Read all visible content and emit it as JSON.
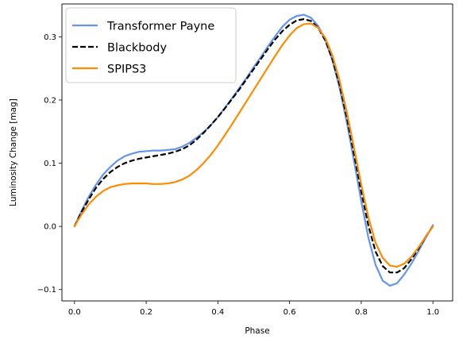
{
  "chart_data": {
    "type": "line",
    "title": "",
    "xlabel": "Phase",
    "ylabel": "Luminosity Change [mag]",
    "xlim": [
      -0.035,
      1.055
    ],
    "ylim": [
      -0.118,
      0.352
    ],
    "xticks": [
      0.0,
      0.2,
      0.4,
      0.6,
      0.8,
      1.0
    ],
    "xtick_labels": [
      "0.0",
      "0.2",
      "0.4",
      "0.6",
      "0.8",
      "1.0"
    ],
    "yticks": [
      -0.1,
      0.0,
      0.1,
      0.2,
      0.3
    ],
    "ytick_labels": [
      "−0.1",
      "0.0",
      "0.1",
      "0.2",
      "0.3"
    ],
    "grid": false,
    "legend_position": "top-left",
    "series": [
      {
        "name": "Transformer Payne",
        "color": "#6495ED",
        "dash": "solid",
        "x": [
          0.0,
          0.02,
          0.04,
          0.06,
          0.08,
          0.1,
          0.12,
          0.14,
          0.16,
          0.18,
          0.2,
          0.22,
          0.24,
          0.26,
          0.28,
          0.3,
          0.32,
          0.34,
          0.36,
          0.38,
          0.4,
          0.42,
          0.44,
          0.46,
          0.48,
          0.5,
          0.52,
          0.54,
          0.56,
          0.58,
          0.6,
          0.62,
          0.64,
          0.66,
          0.68,
          0.7,
          0.72,
          0.74,
          0.76,
          0.78,
          0.8,
          0.82,
          0.84,
          0.86,
          0.88,
          0.9,
          0.92,
          0.94,
          0.96,
          0.98,
          1.0
        ],
        "y": [
          0.0,
          0.025,
          0.047,
          0.066,
          0.082,
          0.094,
          0.104,
          0.111,
          0.115,
          0.118,
          0.119,
          0.12,
          0.12,
          0.121,
          0.122,
          0.126,
          0.132,
          0.14,
          0.149,
          0.16,
          0.173,
          0.188,
          0.203,
          0.219,
          0.235,
          0.252,
          0.268,
          0.285,
          0.301,
          0.316,
          0.327,
          0.333,
          0.335,
          0.33,
          0.317,
          0.295,
          0.262,
          0.218,
          0.164,
          0.103,
          0.04,
          -0.018,
          -0.061,
          -0.086,
          -0.094,
          -0.09,
          -0.076,
          -0.059,
          -0.039,
          -0.018,
          0.002
        ]
      },
      {
        "name": "Blackbody",
        "color": "#000000",
        "dash": "dashed",
        "x": [
          0.0,
          0.02,
          0.04,
          0.06,
          0.08,
          0.1,
          0.12,
          0.14,
          0.16,
          0.18,
          0.2,
          0.22,
          0.24,
          0.26,
          0.28,
          0.3,
          0.32,
          0.34,
          0.36,
          0.38,
          0.4,
          0.42,
          0.44,
          0.46,
          0.48,
          0.5,
          0.52,
          0.54,
          0.56,
          0.58,
          0.6,
          0.62,
          0.64,
          0.66,
          0.68,
          0.7,
          0.72,
          0.74,
          0.76,
          0.78,
          0.8,
          0.82,
          0.84,
          0.86,
          0.88,
          0.9,
          0.92,
          0.94,
          0.96,
          0.98,
          1.0
        ],
        "y": [
          0.0,
          0.023,
          0.043,
          0.061,
          0.075,
          0.086,
          0.094,
          0.1,
          0.104,
          0.107,
          0.109,
          0.111,
          0.113,
          0.115,
          0.118,
          0.122,
          0.128,
          0.137,
          0.148,
          0.16,
          0.173,
          0.187,
          0.202,
          0.217,
          0.233,
          0.249,
          0.265,
          0.281,
          0.296,
          0.309,
          0.319,
          0.326,
          0.328,
          0.325,
          0.314,
          0.294,
          0.264,
          0.223,
          0.172,
          0.114,
          0.055,
          0.001,
          -0.04,
          -0.063,
          -0.073,
          -0.073,
          -0.066,
          -0.052,
          -0.035,
          -0.016,
          0.0
        ]
      },
      {
        "name": "SPIPS3",
        "color": "#FF8C00",
        "dash": "solid",
        "x": [
          0.0,
          0.02,
          0.04,
          0.06,
          0.08,
          0.1,
          0.12,
          0.14,
          0.16,
          0.18,
          0.2,
          0.22,
          0.24,
          0.26,
          0.28,
          0.3,
          0.32,
          0.34,
          0.36,
          0.38,
          0.4,
          0.42,
          0.44,
          0.46,
          0.48,
          0.5,
          0.52,
          0.54,
          0.56,
          0.58,
          0.6,
          0.62,
          0.64,
          0.66,
          0.68,
          0.7,
          0.72,
          0.74,
          0.76,
          0.78,
          0.8,
          0.82,
          0.84,
          0.86,
          0.88,
          0.9,
          0.92,
          0.94,
          0.96,
          0.98,
          1.0
        ],
        "y": [
          0.0,
          0.019,
          0.035,
          0.047,
          0.056,
          0.062,
          0.065,
          0.067,
          0.068,
          0.068,
          0.068,
          0.067,
          0.067,
          0.068,
          0.07,
          0.074,
          0.08,
          0.089,
          0.1,
          0.113,
          0.128,
          0.145,
          0.162,
          0.18,
          0.198,
          0.216,
          0.234,
          0.252,
          0.27,
          0.287,
          0.302,
          0.314,
          0.32,
          0.321,
          0.314,
          0.298,
          0.27,
          0.23,
          0.18,
          0.124,
          0.066,
          0.014,
          -0.026,
          -0.05,
          -0.062,
          -0.064,
          -0.059,
          -0.048,
          -0.033,
          -0.016,
          0.0
        ]
      }
    ]
  }
}
